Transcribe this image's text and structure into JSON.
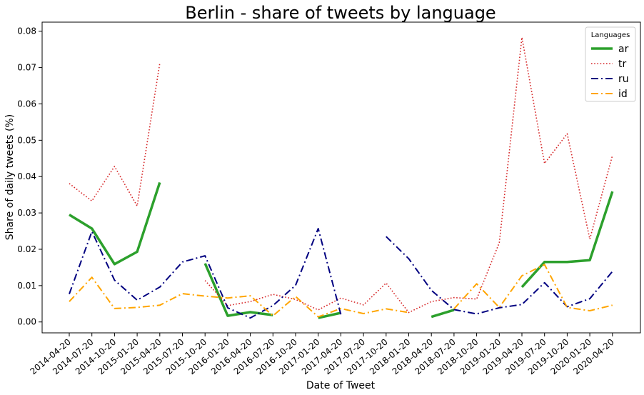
{
  "chart_data": {
    "type": "line",
    "title": "Berlin - share of tweets by language",
    "xlabel": "Date of Tweet",
    "ylabel": "Share of daily tweets (%)",
    "ylim": [
      -0.003,
      0.0825
    ],
    "yticks": [
      "0.00",
      "0.01",
      "0.02",
      "0.03",
      "0.04",
      "0.05",
      "0.06",
      "0.07",
      "0.08"
    ],
    "grid": false,
    "legend_title": "Languages",
    "legend_position": "top-right",
    "categories": [
      "2014-04-20",
      "2014-07-20",
      "2014-10-20",
      "2015-01-20",
      "2015-04-20",
      "2015-07-20",
      "2015-10-20",
      "2016-01-20",
      "2016-04-20",
      "2016-07-20",
      "2016-10-20",
      "2017-01-20",
      "2017-04-20",
      "2017-07-20",
      "2017-10-20",
      "2018-01-20",
      "2018-04-20",
      "2018-07-20",
      "2018-10-20",
      "2019-01-20",
      "2019-04-20",
      "2019-07-20",
      "2019-10-20",
      "2020-01-20",
      "2020-04-20"
    ],
    "series": [
      {
        "name": "ar",
        "color": "#2ca02c",
        "style": "solid",
        "values": [
          0.0295,
          0.0257,
          0.0159,
          0.0193,
          0.0384,
          null,
          0.0161,
          0.0017,
          0.0027,
          0.0019,
          null,
          0.0011,
          0.0025,
          null,
          null,
          null,
          0.0014,
          0.0033,
          null,
          null,
          0.0096,
          0.0165,
          0.0165,
          0.017,
          0.0359
        ]
      },
      {
        "name": "tr",
        "color": "#d62728",
        "style": "dotted",
        "values": [
          0.0381,
          0.0333,
          0.0428,
          0.0319,
          0.0712,
          null,
          0.0114,
          0.0045,
          0.0056,
          0.0076,
          0.0062,
          0.0033,
          0.0066,
          0.0047,
          0.0107,
          0.0026,
          0.0056,
          0.0067,
          0.0063,
          0.0218,
          0.0783,
          0.0436,
          0.0518,
          0.0228,
          0.0458
        ]
      },
      {
        "name": "ru",
        "color": "#000080",
        "style": "dashdot",
        "values": [
          0.0077,
          0.0249,
          0.0115,
          0.006,
          0.0096,
          0.0165,
          0.0182,
          0.0039,
          0.0011,
          0.0045,
          0.0101,
          0.0257,
          0.0021,
          null,
          0.0235,
          0.0174,
          0.0087,
          0.0034,
          0.0022,
          0.0039,
          0.0048,
          0.0108,
          0.0042,
          0.0064,
          0.0139
        ]
      },
      {
        "name": "id",
        "color": "#ffa500",
        "style": "dashdot",
        "values": [
          0.0056,
          0.0123,
          0.0037,
          0.004,
          0.0046,
          0.0078,
          0.0071,
          0.0066,
          0.0072,
          0.0017,
          0.007,
          0.0014,
          0.0037,
          0.0023,
          0.0036,
          0.0026,
          null,
          0.0036,
          0.0105,
          0.004,
          0.0127,
          0.0158,
          0.004,
          0.0031,
          0.0046
        ]
      }
    ]
  }
}
